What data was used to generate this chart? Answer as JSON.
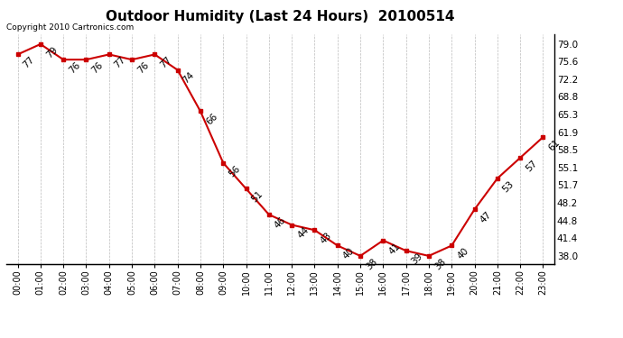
{
  "title": "Outdoor Humidity (Last 24 Hours)  20100514",
  "copyright_text": "Copyright 2010 Cartronics.com",
  "x_labels": [
    "00:00",
    "01:00",
    "02:00",
    "03:00",
    "04:00",
    "05:00",
    "06:00",
    "07:00",
    "08:00",
    "09:00",
    "10:00",
    "11:00",
    "12:00",
    "13:00",
    "14:00",
    "15:00",
    "16:00",
    "17:00",
    "18:00",
    "19:00",
    "20:00",
    "21:00",
    "22:00",
    "23:00"
  ],
  "y_values": [
    77,
    79,
    76,
    76,
    77,
    76,
    77,
    74,
    66,
    56,
    51,
    46,
    44,
    43,
    40,
    38,
    41,
    39,
    38,
    40,
    47,
    53,
    57,
    61
  ],
  "y_labels": [
    38.0,
    41.4,
    44.8,
    48.2,
    51.7,
    55.1,
    58.5,
    61.9,
    65.3,
    68.8,
    72.2,
    75.6,
    79.0
  ],
  "ylim": [
    36.5,
    81.0
  ],
  "line_color": "#CC0000",
  "marker_color": "#CC0000",
  "background_color": "#ffffff",
  "grid_color": "#bbbbbb",
  "title_fontsize": 11,
  "annotation_fontsize": 7.5
}
